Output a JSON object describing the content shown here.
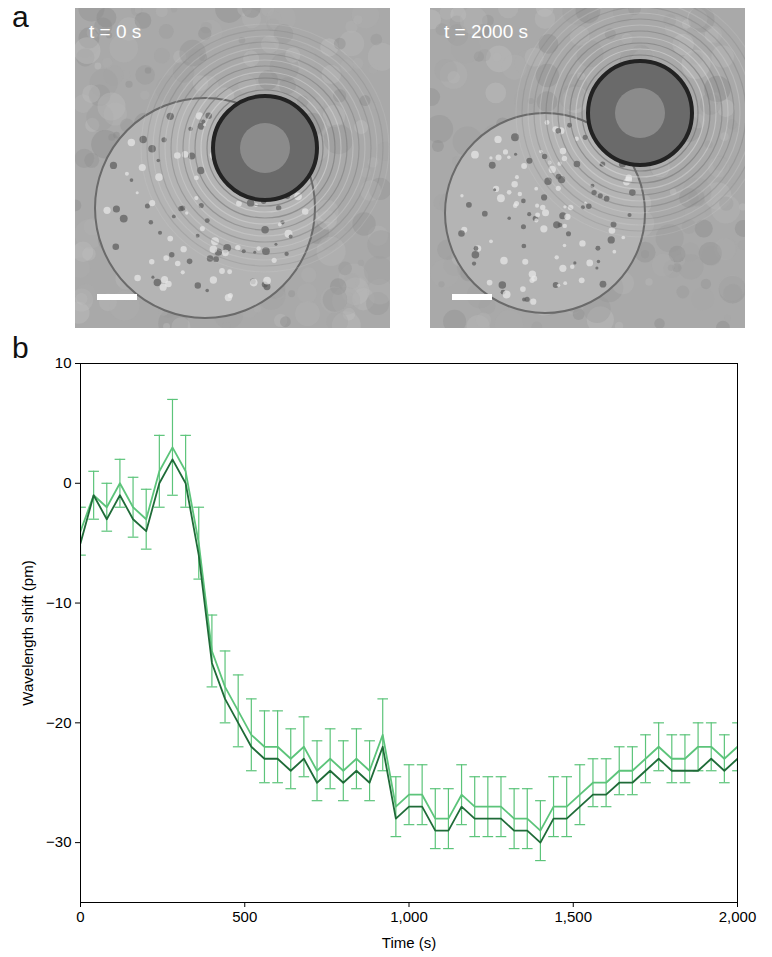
{
  "panel_labels": [
    "a",
    "b"
  ],
  "images": [
    {
      "label": "t = 0 s"
    },
    {
      "label": "t = 2000 s"
    }
  ],
  "chart_data": {
    "type": "line",
    "x_label": "Time (s)",
    "y_label": "Wavelength shift (pm)",
    "xlim": [
      0,
      2000
    ],
    "xticks": [
      0,
      500,
      1000,
      1500,
      2000
    ],
    "ylim": [
      -35,
      10
    ],
    "yticks": [
      -30,
      -20,
      -10,
      0,
      10
    ],
    "x": [
      0,
      40,
      80,
      120,
      160,
      200,
      240,
      280,
      320,
      360,
      400,
      440,
      480,
      520,
      560,
      600,
      640,
      680,
      720,
      760,
      800,
      840,
      880,
      920,
      960,
      1000,
      1040,
      1080,
      1120,
      1160,
      1200,
      1240,
      1280,
      1320,
      1360,
      1400,
      1440,
      1480,
      1520,
      1560,
      1600,
      1640,
      1680,
      1720,
      1760,
      1800,
      1840,
      1880,
      1920,
      1960,
      2000
    ],
    "series": [
      {
        "color": "#5cc47a",
        "values": [
          -4,
          -1,
          -2,
          0,
          -2,
          -3,
          1,
          3,
          1,
          -5,
          -14,
          -17,
          -19,
          -21,
          -22,
          -22,
          -23,
          -22,
          -24,
          -23,
          -24,
          -23,
          -24,
          -21,
          -27,
          -26,
          -26,
          -28,
          -28,
          -26,
          -27,
          -27,
          -27,
          -28,
          -28,
          -29,
          -27,
          -27,
          -26,
          -25,
          -25,
          -24,
          -24,
          -23,
          -22,
          -23,
          -23,
          -22,
          -22,
          -23,
          -22
        ],
        "errors": [
          2,
          2,
          2,
          2,
          2.5,
          2.5,
          3,
          4,
          3,
          3,
          3,
          3,
          3,
          3,
          3,
          3,
          2.5,
          2.5,
          2.5,
          2.5,
          2.5,
          2.5,
          2.5,
          3,
          2.5,
          2.5,
          2.5,
          2.5,
          2.5,
          2.5,
          2.5,
          2.5,
          2.5,
          2.5,
          2.5,
          2.5,
          2.5,
          2.5,
          2.5,
          2,
          2,
          2,
          2,
          2,
          2,
          2,
          2,
          2,
          2,
          2,
          2
        ]
      },
      {
        "color": "#1f6b38",
        "values": [
          -5,
          -1,
          -3,
          -1,
          -3,
          -4,
          0,
          2,
          0,
          -6,
          -15,
          -18,
          -20,
          -22,
          -23,
          -23,
          -24,
          -23,
          -25,
          -24,
          -25,
          -24,
          -25,
          -22,
          -28,
          -27,
          -27,
          -29,
          -29,
          -27,
          -28,
          -28,
          -28,
          -29,
          -29,
          -30,
          -28,
          -28,
          -27,
          -26,
          -26,
          -25,
          -25,
          -24,
          -23,
          -24,
          -24,
          -24,
          -23,
          -24,
          -23
        ]
      }
    ]
  }
}
